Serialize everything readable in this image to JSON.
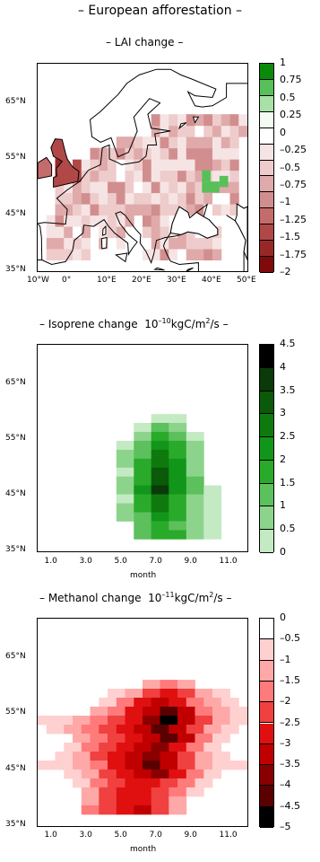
{
  "page_title": "– European afforestation –",
  "chart_data": [
    {
      "type": "heatmap",
      "title": "– LAI change –",
      "x_ticks": [
        "10°W",
        "0°",
        "10°E",
        "20°E",
        "30°E",
        "40°E",
        "50°E"
      ],
      "y_ticks": [
        "65°N",
        "55°N",
        "45°N",
        "35°N"
      ],
      "colorbar_ticks": [
        "1",
        "0.75",
        "0.5",
        "0.25",
        "0",
        "–0.25",
        "–0.5",
        "–0.75",
        "–1",
        "–1.25",
        "–1.5",
        "–1.75",
        "–2"
      ],
      "colorbar_colors": [
        "#0a8a0a",
        "#58c058",
        "#a8e0a8",
        "#f2faf2",
        "#ffffff",
        "#f6e4e4",
        "#eecccc",
        "#e0aaaa",
        "#d28e8e",
        "#c46c6c",
        "#b04848",
        "#982828",
        "#800a0a"
      ],
      "map_region": "Europe",
      "lon_range": [
        -10,
        50
      ],
      "lat_range": [
        35,
        72
      ]
    },
    {
      "type": "heatmap",
      "title_prefix": "– Isoprene change",
      "title_unit": "10",
      "title_exp": "–10",
      "title_unit2": "kgC/m",
      "title_exp2": "2",
      "title_suffix": "/s –",
      "x_ticks": [
        "1.0",
        "3.0",
        "5.0",
        "7.0",
        "9.0",
        "11.0"
      ],
      "xlabel": "month",
      "y_ticks": [
        "65°N",
        "55°N",
        "45°N",
        "35°N"
      ],
      "colorbar_ticks": [
        "4.5",
        "4",
        "3.5",
        "3",
        "2.5",
        "2",
        "1.5",
        "1",
        "0.5",
        "0"
      ],
      "colorbar_colors": [
        "#000000",
        "#0a3a0a",
        "#0a5a0a",
        "#0e7a0e",
        "#12961a",
        "#2aaa2a",
        "#5cc05c",
        "#8cd48c",
        "#c4eac4"
      ],
      "x_range": [
        0,
        12
      ],
      "y_range": [
        35,
        72
      ],
      "cells": [
        [
          7.0,
          58.8,
          1
        ],
        [
          8.0,
          58.8,
          1
        ],
        [
          6.0,
          57.2,
          1
        ],
        [
          7.0,
          57.2,
          3
        ],
        [
          8.0,
          57.2,
          2
        ],
        [
          6.0,
          55.6,
          2
        ],
        [
          7.0,
          55.6,
          4
        ],
        [
          8.0,
          55.6,
          3
        ],
        [
          9.0,
          55.6,
          1
        ],
        [
          5.0,
          54.0,
          1
        ],
        [
          6.0,
          54.0,
          3
        ],
        [
          7.0,
          54.0,
          5
        ],
        [
          8.0,
          54.0,
          4
        ],
        [
          9.0,
          54.0,
          2
        ],
        [
          5.0,
          52.4,
          2
        ],
        [
          6.0,
          52.4,
          3
        ],
        [
          7.0,
          52.4,
          6
        ],
        [
          8.0,
          52.4,
          4
        ],
        [
          9.0,
          52.4,
          2
        ],
        [
          5.0,
          50.8,
          2
        ],
        [
          6.0,
          50.8,
          4
        ],
        [
          7.0,
          50.8,
          6
        ],
        [
          8.0,
          50.8,
          5
        ],
        [
          9.0,
          50.8,
          2
        ],
        [
          5.0,
          49.2,
          1
        ],
        [
          6.0,
          49.2,
          4
        ],
        [
          7.0,
          49.2,
          7
        ],
        [
          8.0,
          49.2,
          5
        ],
        [
          9.0,
          49.2,
          2
        ],
        [
          5.0,
          47.6,
          2
        ],
        [
          6.0,
          47.6,
          4
        ],
        [
          7.0,
          47.6,
          7
        ],
        [
          8.0,
          47.6,
          5
        ],
        [
          9.0,
          47.6,
          3
        ],
        [
          5.0,
          46.0,
          2
        ],
        [
          6.0,
          46.0,
          5
        ],
        [
          7.0,
          46.0,
          8
        ],
        [
          8.0,
          46.0,
          5
        ],
        [
          9.0,
          46.0,
          3
        ],
        [
          10.0,
          46.0,
          1
        ],
        [
          5.0,
          44.4,
          1
        ],
        [
          6.0,
          44.4,
          4
        ],
        [
          7.0,
          44.4,
          6
        ],
        [
          8.0,
          44.4,
          4
        ],
        [
          9.0,
          44.4,
          2
        ],
        [
          10.0,
          44.4,
          1
        ],
        [
          5.0,
          42.8,
          2
        ],
        [
          6.0,
          42.8,
          4
        ],
        [
          7.0,
          42.8,
          6
        ],
        [
          8.0,
          42.8,
          4
        ],
        [
          9.0,
          42.8,
          2
        ],
        [
          10.0,
          42.8,
          1
        ],
        [
          5.0,
          41.2,
          2
        ],
        [
          6.0,
          41.2,
          3
        ],
        [
          7.0,
          41.2,
          5
        ],
        [
          8.0,
          41.2,
          4
        ],
        [
          9.0,
          41.2,
          2
        ],
        [
          10.0,
          41.2,
          1
        ],
        [
          6.0,
          39.6,
          3
        ],
        [
          7.0,
          39.6,
          4
        ],
        [
          8.0,
          39.6,
          3
        ],
        [
          9.0,
          39.6,
          2
        ],
        [
          10.0,
          39.6,
          1
        ],
        [
          6.0,
          38.0,
          3
        ],
        [
          7.0,
          38.0,
          4
        ],
        [
          8.0,
          38.0,
          4
        ],
        [
          9.0,
          38.0,
          2
        ],
        [
          10.0,
          38.0,
          1
        ]
      ]
    },
    {
      "type": "heatmap",
      "title_prefix": "– Methanol change",
      "title_unit": "10",
      "title_exp": "–11",
      "title_unit2": "kgC/m",
      "title_exp2": "2",
      "title_suffix": "/s –",
      "x_ticks": [
        "1.0",
        "3.0",
        "5.0",
        "7.0",
        "9.0",
        "11.0"
      ],
      "xlabel": "month",
      "y_ticks": [
        "65°N",
        "55°N",
        "45°N",
        "35°N"
      ],
      "colorbar_ticks": [
        "0",
        "–0.5",
        "–1",
        "–1.5",
        "–2",
        "–2.5",
        "–3",
        "–3.5",
        "–4",
        "–4.5",
        "–5"
      ],
      "colorbar_colors": [
        "#ffffff",
        "#ffd0d0",
        "#ffa8a8",
        "#ff7a7a",
        "#f04040",
        "#e01010",
        "#c00000",
        "#8a0000",
        "#5a0000",
        "#000000"
      ],
      "x_range": [
        0,
        12
      ],
      "y_range": [
        35,
        72
      ],
      "cells": [
        [
          6.5,
          60.3,
          2
        ],
        [
          7.5,
          60.3,
          3
        ],
        [
          8.5,
          60.3,
          2
        ],
        [
          4.5,
          58.7,
          1
        ],
        [
          5.5,
          58.7,
          2
        ],
        [
          6.5,
          58.7,
          4
        ],
        [
          7.5,
          58.7,
          5
        ],
        [
          8.5,
          58.7,
          4
        ],
        [
          9.5,
          58.7,
          2
        ],
        [
          10.5,
          58.7,
          1
        ],
        [
          4.0,
          57.1,
          1
        ],
        [
          5.0,
          57.1,
          3
        ],
        [
          6.0,
          57.1,
          5
        ],
        [
          7.0,
          57.1,
          6
        ],
        [
          8.0,
          57.1,
          5
        ],
        [
          9.0,
          57.1,
          3
        ],
        [
          10.0,
          57.1,
          2
        ],
        [
          11.0,
          57.1,
          1
        ],
        [
          3.5,
          55.5,
          2
        ],
        [
          4.5,
          55.5,
          3
        ],
        [
          5.5,
          55.5,
          5
        ],
        [
          6.5,
          55.5,
          6
        ],
        [
          7.5,
          55.5,
          8
        ],
        [
          8.5,
          55.5,
          6
        ],
        [
          9.5,
          55.5,
          3
        ],
        [
          10.5,
          55.5,
          2
        ],
        [
          11.5,
          55.5,
          1
        ],
        [
          0.5,
          53.9,
          1
        ],
        [
          1.5,
          53.9,
          1
        ],
        [
          2.5,
          53.9,
          2
        ],
        [
          3.5,
          53.9,
          3
        ],
        [
          4.5,
          53.9,
          4
        ],
        [
          5.5,
          53.9,
          5
        ],
        [
          6.5,
          53.9,
          7
        ],
        [
          7.5,
          53.9,
          9
        ],
        [
          8.5,
          53.9,
          6
        ],
        [
          9.5,
          53.9,
          4
        ],
        [
          10.5,
          53.9,
          2
        ],
        [
          11.5,
          53.9,
          1
        ],
        [
          1.0,
          52.3,
          1
        ],
        [
          2.0,
          52.3,
          2
        ],
        [
          3.0,
          52.3,
          3
        ],
        [
          4.0,
          52.3,
          4
        ],
        [
          5.0,
          52.3,
          5
        ],
        [
          6.0,
          52.3,
          6
        ],
        [
          7.0,
          52.3,
          8
        ],
        [
          8.0,
          52.3,
          6
        ],
        [
          9.0,
          52.3,
          4
        ],
        [
          10.0,
          52.3,
          2
        ],
        [
          11.0,
          52.3,
          1
        ],
        [
          2.5,
          50.7,
          2
        ],
        [
          3.5,
          50.7,
          3
        ],
        [
          4.5,
          50.7,
          4
        ],
        [
          5.5,
          50.7,
          5
        ],
        [
          6.5,
          50.7,
          6
        ],
        [
          7.5,
          50.7,
          8
        ],
        [
          8.5,
          50.7,
          6
        ],
        [
          9.5,
          50.7,
          3
        ],
        [
          10.5,
          50.7,
          1
        ],
        [
          2.0,
          49.1,
          1
        ],
        [
          3.0,
          49.1,
          3
        ],
        [
          4.0,
          49.1,
          4
        ],
        [
          5.0,
          49.1,
          5
        ],
        [
          6.0,
          49.1,
          6
        ],
        [
          7.0,
          49.1,
          7
        ],
        [
          8.0,
          49.1,
          5
        ],
        [
          9.0,
          49.1,
          3
        ],
        [
          10.0,
          49.1,
          1
        ],
        [
          1.5,
          47.5,
          1
        ],
        [
          2.5,
          47.5,
          2
        ],
        [
          3.5,
          47.5,
          4
        ],
        [
          4.5,
          47.5,
          5
        ],
        [
          5.5,
          47.5,
          6
        ],
        [
          6.5,
          47.5,
          7
        ],
        [
          7.5,
          47.5,
          6
        ],
        [
          8.5,
          47.5,
          4
        ],
        [
          9.5,
          47.5,
          2
        ],
        [
          10.5,
          47.5,
          1
        ],
        [
          0.5,
          45.9,
          1
        ],
        [
          1.5,
          45.9,
          1
        ],
        [
          2.5,
          45.9,
          2
        ],
        [
          3.5,
          45.9,
          3
        ],
        [
          4.5,
          45.9,
          5
        ],
        [
          5.5,
          45.9,
          6
        ],
        [
          6.5,
          45.9,
          8
        ],
        [
          7.5,
          45.9,
          6
        ],
        [
          8.5,
          45.9,
          4
        ],
        [
          9.5,
          45.9,
          2
        ],
        [
          10.5,
          45.9,
          1
        ],
        [
          11.5,
          45.9,
          1
        ],
        [
          2.0,
          44.3,
          1
        ],
        [
          3.0,
          44.3,
          2
        ],
        [
          4.0,
          44.3,
          4
        ],
        [
          5.0,
          44.3,
          5
        ],
        [
          6.0,
          44.3,
          6
        ],
        [
          7.0,
          44.3,
          7
        ],
        [
          8.0,
          44.3,
          5
        ],
        [
          9.0,
          44.3,
          3
        ],
        [
          10.0,
          44.3,
          1
        ],
        [
          2.5,
          42.7,
          1
        ],
        [
          3.5,
          42.7,
          3
        ],
        [
          4.5,
          42.7,
          4
        ],
        [
          5.5,
          42.7,
          5
        ],
        [
          6.5,
          42.7,
          5
        ],
        [
          7.5,
          42.7,
          4
        ],
        [
          8.5,
          42.7,
          3
        ],
        [
          9.5,
          42.7,
          1
        ],
        [
          3.0,
          41.1,
          2
        ],
        [
          4.0,
          41.1,
          4
        ],
        [
          5.0,
          41.1,
          5
        ],
        [
          6.0,
          41.1,
          5
        ],
        [
          7.0,
          41.1,
          4
        ],
        [
          8.0,
          41.1,
          3
        ],
        [
          9.0,
          41.1,
          1
        ],
        [
          3.0,
          39.5,
          2
        ],
        [
          4.0,
          39.5,
          4
        ],
        [
          5.0,
          39.5,
          5
        ],
        [
          6.0,
          39.5,
          5
        ],
        [
          7.0,
          39.5,
          4
        ],
        [
          8.0,
          39.5,
          2
        ],
        [
          3.0,
          37.9,
          3
        ],
        [
          4.0,
          37.9,
          4
        ],
        [
          5.0,
          37.9,
          5
        ],
        [
          6.0,
          37.9,
          6
        ],
        [
          7.0,
          37.9,
          4
        ],
        [
          8.0,
          37.9,
          2
        ]
      ]
    }
  ]
}
